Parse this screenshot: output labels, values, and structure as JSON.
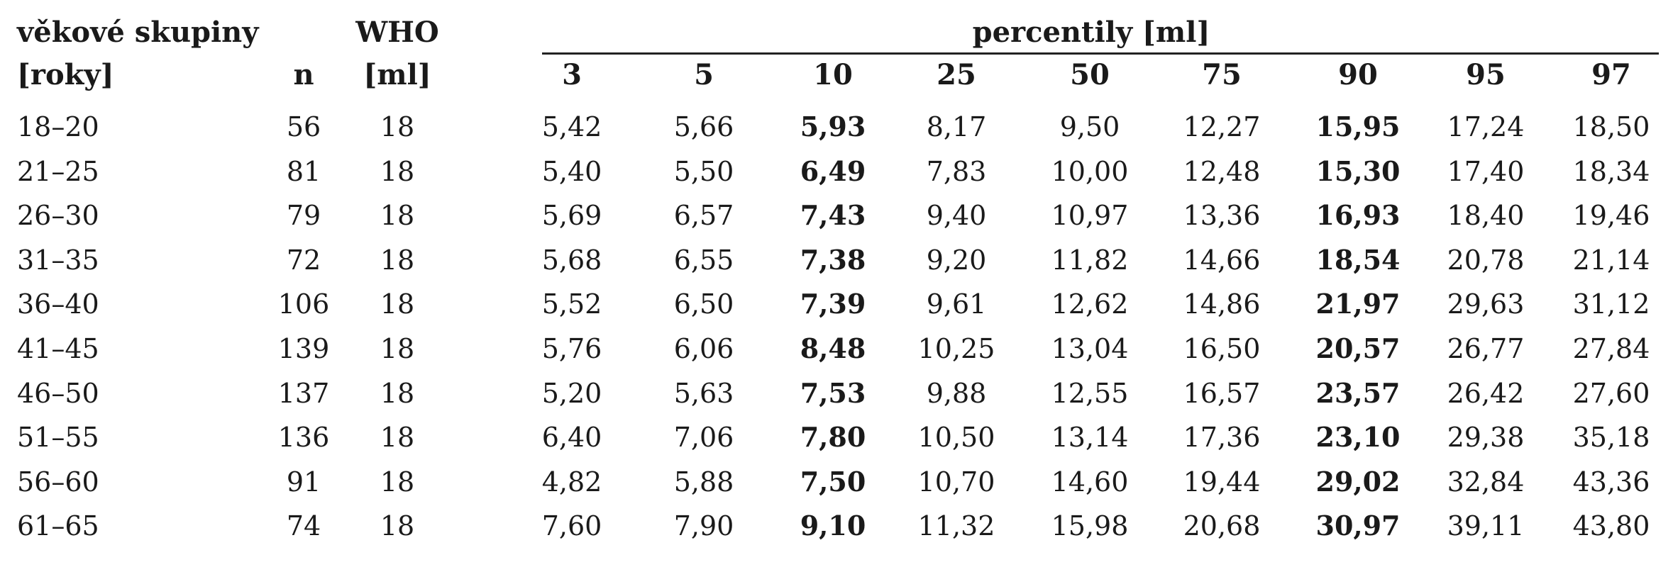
{
  "table": {
    "col_headers": {
      "age_group_line1": "věkové skupiny",
      "age_group_line2": "[roky]",
      "n": "n",
      "who_line1": "WHO",
      "who_line2": "[ml]",
      "percentiles_group": "percentily [ml]",
      "percentiles": [
        "3",
        "5",
        "10",
        "25",
        "50",
        "75",
        "90",
        "95",
        "97"
      ]
    },
    "bold_percentile_columns": [
      "10",
      "90"
    ],
    "rows": [
      {
        "age": "18–20",
        "n": "56",
        "who": "18",
        "p": [
          "5,42",
          "5,66",
          "5,93",
          "8,17",
          "9,50",
          "12,27",
          "15,95",
          "17,24",
          "18,50"
        ]
      },
      {
        "age": "21–25",
        "n": "81",
        "who": "18",
        "p": [
          "5,40",
          "5,50",
          "6,49",
          "7,83",
          "10,00",
          "12,48",
          "15,30",
          "17,40",
          "18,34"
        ]
      },
      {
        "age": "26–30",
        "n": "79",
        "who": "18",
        "p": [
          "5,69",
          "6,57",
          "7,43",
          "9,40",
          "10,97",
          "13,36",
          "16,93",
          "18,40",
          "19,46"
        ]
      },
      {
        "age": "31–35",
        "n": "72",
        "who": "18",
        "p": [
          "5,68",
          "6,55",
          "7,38",
          "9,20",
          "11,82",
          "14,66",
          "18,54",
          "20,78",
          "21,14"
        ]
      },
      {
        "age": "36–40",
        "n": "106",
        "who": "18",
        "p": [
          "5,52",
          "6,50",
          "7,39",
          "9,61",
          "12,62",
          "14,86",
          "21,97",
          "29,63",
          "31,12"
        ]
      },
      {
        "age": "41–45",
        "n": "139",
        "who": "18",
        "p": [
          "5,76",
          "6,06",
          "8,48",
          "10,25",
          "13,04",
          "16,50",
          "20,57",
          "26,77",
          "27,84"
        ]
      },
      {
        "age": "46–50",
        "n": "137",
        "who": "18",
        "p": [
          "5,20",
          "5,63",
          "7,53",
          "9,88",
          "12,55",
          "16,57",
          "23,57",
          "26,42",
          "27,60"
        ]
      },
      {
        "age": "51–55",
        "n": "136",
        "who": "18",
        "p": [
          "6,40",
          "7,06",
          "7,80",
          "10,50",
          "13,14",
          "17,36",
          "23,10",
          "29,38",
          "35,18"
        ]
      },
      {
        "age": "56–60",
        "n": "91",
        "who": "18",
        "p": [
          "4,82",
          "5,88",
          "7,50",
          "10,70",
          "14,60",
          "19,44",
          "29,02",
          "32,84",
          "43,36"
        ]
      },
      {
        "age": "61–65",
        "n": "74",
        "who": "18",
        "p": [
          "7,60",
          "7,90",
          "9,10",
          "11,32",
          "15,98",
          "20,68",
          "30,97",
          "39,11",
          "43,80"
        ]
      }
    ]
  }
}
